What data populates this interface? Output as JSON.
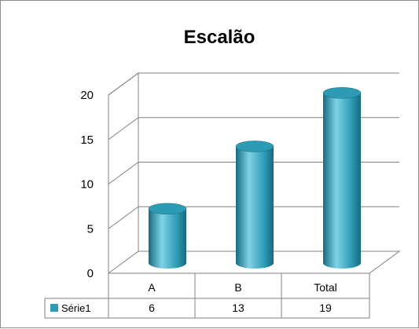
{
  "chart_data": {
    "type": "bar",
    "style": "3d-cylinder",
    "title": "Escalão",
    "categories": [
      "A",
      "B",
      "Total"
    ],
    "series": [
      {
        "name": "Série1",
        "values": [
          6,
          13,
          19
        ],
        "color": "#2e9bb5"
      }
    ],
    "yticks": [
      0,
      5,
      10,
      15,
      20
    ],
    "ylim": [
      0,
      20
    ],
    "grid": true,
    "data_table": true,
    "data_table_values": [
      "6",
      "13",
      "19"
    ]
  },
  "colors": {
    "bar": "#2e9bb5",
    "bar_dark": "#176a80",
    "bar_light": "#7fd3e6",
    "grid": "#808080",
    "frame": "#8c8c8c"
  }
}
